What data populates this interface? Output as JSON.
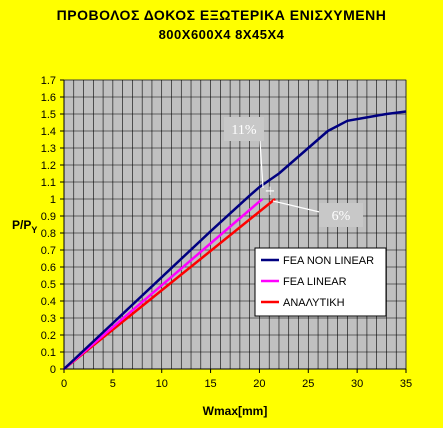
{
  "chart_data": {
    "type": "line",
    "title": "ΠΡΟΒΟΛΟΣ ΔΟΚΟΣ ΕΞΩΤΕΡΙΚΑ ΕΝΙΣΧΥΜΕΝΗ",
    "subtitle": "800Χ600Χ4  8Χ45Χ4",
    "xlabel": "Wmax[mm]",
    "ylabel": "P/Py",
    "xlim": [
      0,
      35
    ],
    "ylim": [
      0,
      1.7
    ],
    "xticks": [
      "0",
      "5",
      "10",
      "15",
      "20",
      "25",
      "30",
      "35"
    ],
    "yticks": [
      "0",
      "0.1",
      "0.2",
      "0.3",
      "0.4",
      "0.5",
      "0.6",
      "0.7",
      "0.8",
      "0.9",
      "1",
      "1.1",
      "1.2",
      "1.3",
      "1.4",
      "1.5",
      "1.6",
      "1.7"
    ],
    "grid": true,
    "plot_background": "#c0c0c0",
    "page_background": "#ffff00",
    "legend_position": "right",
    "series": [
      {
        "name": "FEA NON LINEAR",
        "color": "#000080",
        "x": [
          0,
          5,
          10,
          15,
          19,
          20,
          22,
          25,
          27,
          29,
          31,
          33,
          35
        ],
        "y": [
          0,
          0.27,
          0.54,
          0.81,
          1.02,
          1.07,
          1.15,
          1.3,
          1.4,
          1.46,
          1.48,
          1.5,
          1.515
        ]
      },
      {
        "name": "FEA LINEAR",
        "color": "#ff00ff",
        "x": [
          0,
          20.3
        ],
        "y": [
          0,
          1.0
        ]
      },
      {
        "name": "ΑΝΑΛΥΤΙΚΗ",
        "color": "#ff0000",
        "x": [
          0,
          21.6
        ],
        "y": [
          0,
          1.0
        ]
      }
    ],
    "annotations": [
      {
        "text": "11%",
        "x": 18.7,
        "y": 1.39
      },
      {
        "text": "6%",
        "x": 28.7,
        "y": 0.91
      }
    ]
  }
}
